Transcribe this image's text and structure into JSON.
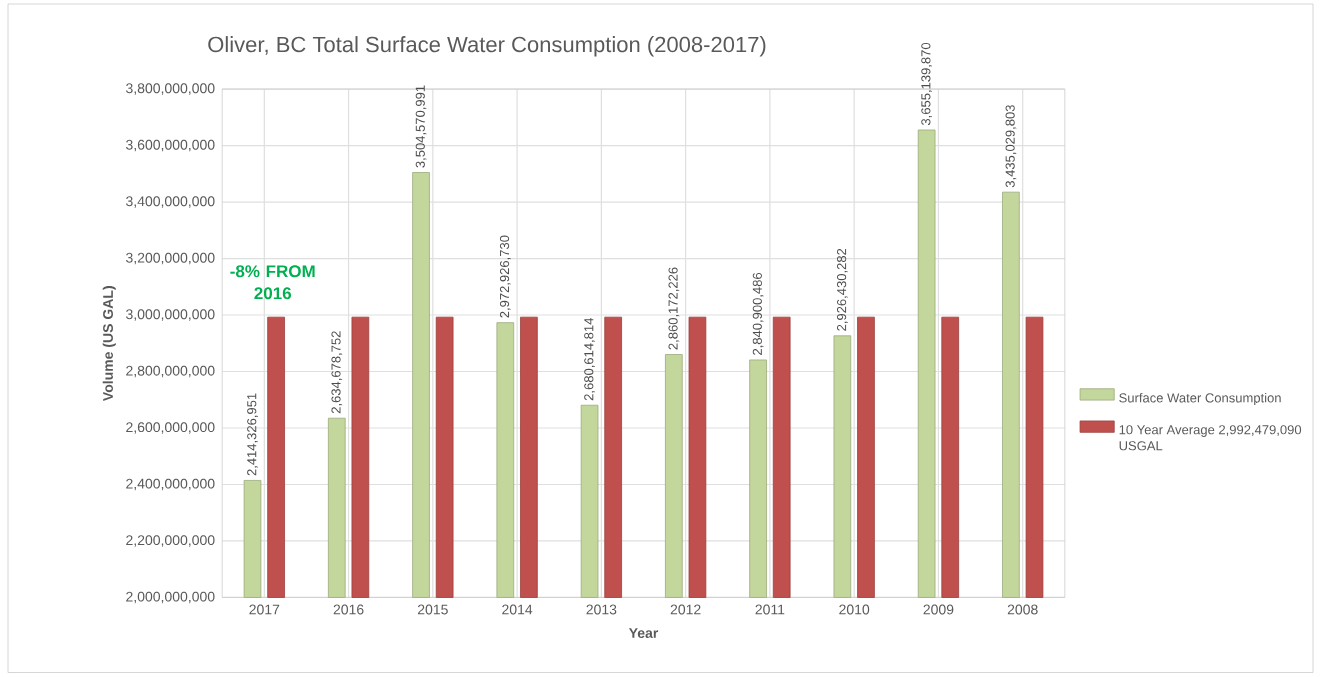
{
  "chart_data": {
    "type": "bar",
    "title": "Oliver, BC Total Surface Water Consumption (2008-2017)",
    "xlabel": "Year",
    "ylabel": "Volume (US GAL)",
    "categories": [
      "2017",
      "2016",
      "2015",
      "2014",
      "2013",
      "2012",
      "2011",
      "2010",
      "2009",
      "2008"
    ],
    "series": [
      {
        "name": "Surface Water Consumption",
        "color": "#c3d69b",
        "values": [
          2414326951,
          2634678752,
          3504570991,
          2972926730,
          2680614814,
          2860172226,
          2840900486,
          2926430282,
          3655139870,
          3435029803
        ],
        "value_labels": [
          "2,414,326,951",
          "2,634,678,752",
          "3,504,570,991",
          "2,972,926,730",
          "2,680,614,814",
          "2,860,172,226",
          "2,840,900,486",
          "2,926,430,282",
          "3,655,139,870",
          "3,435,029,803"
        ]
      },
      {
        "name": "10 Year Average 2,992,479,090 USGAL",
        "color": "#c0504d",
        "values": [
          2992479090,
          2992479090,
          2992479090,
          2992479090,
          2992479090,
          2992479090,
          2992479090,
          2992479090,
          2992479090,
          2992479090
        ]
      }
    ],
    "ylim": [
      2000000000,
      3800000000
    ],
    "yticks": [
      {
        "value": 2000000000,
        "label": "2,000,000,000"
      },
      {
        "value": 2200000000,
        "label": "2,200,000,000"
      },
      {
        "value": 2400000000,
        "label": "2,400,000,000"
      },
      {
        "value": 2600000000,
        "label": "2,600,000,000"
      },
      {
        "value": 2800000000,
        "label": "2,800,000,000"
      },
      {
        "value": 3000000000,
        "label": "3,000,000,000"
      },
      {
        "value": 3200000000,
        "label": "3,200,000,000"
      },
      {
        "value": 3400000000,
        "label": "3,400,000,000"
      },
      {
        "value": 3600000000,
        "label": "3,600,000,000"
      },
      {
        "value": 3800000000,
        "label": "3,800,000,000"
      }
    ],
    "annotations": [
      "-8% FROM 2016"
    ],
    "grid": true,
    "legend": "right"
  }
}
